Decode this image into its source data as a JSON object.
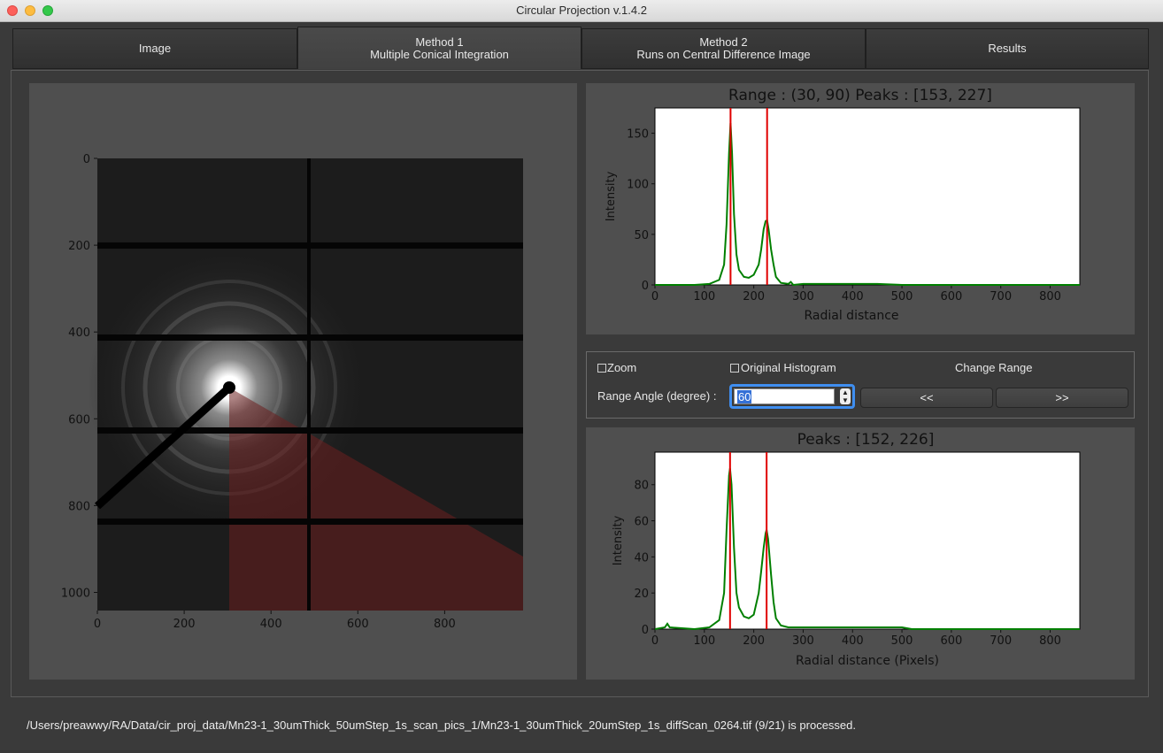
{
  "window": {
    "title": "Circular Projection v.1.4.2"
  },
  "tabs": [
    {
      "line1": "Image",
      "line2": ""
    },
    {
      "line1": "Method 1",
      "line2": "Multiple Conical Integration"
    },
    {
      "line1": "Method 2",
      "line2": "Runs on Central Difference Image"
    },
    {
      "line1": "Results",
      "line2": ""
    }
  ],
  "image_plot": {
    "x_ticks": [
      "0",
      "200",
      "400",
      "600",
      "800"
    ],
    "y_ticks": [
      "0",
      "200",
      "400",
      "600",
      "800",
      "1000"
    ]
  },
  "top_plot": {
    "title": "Range : (30, 90)   Peaks : [153, 227]",
    "ylabel": "Intensity",
    "xlabel": "Radial distance",
    "x_ticks": [
      "0",
      "100",
      "200",
      "300",
      "400",
      "500",
      "600",
      "700",
      "800"
    ],
    "y_ticks": [
      "0",
      "50",
      "100",
      "150"
    ]
  },
  "controls": {
    "zoom_label": "Zoom",
    "orig_hist_label": "Original Histogram",
    "change_range_label": "Change Range",
    "range_angle_label": "Range Angle (degree) :",
    "range_angle_value": "60",
    "prev_label": "<<",
    "next_label": ">>"
  },
  "bottom_plot": {
    "title": "Peaks : [152, 226]",
    "ylabel": "Intensity",
    "xlabel": "Radial distance (Pixels)",
    "x_ticks": [
      "0",
      "100",
      "200",
      "300",
      "400",
      "500",
      "600",
      "700",
      "800"
    ],
    "y_ticks": [
      "0",
      "20",
      "40",
      "60",
      "80"
    ]
  },
  "status": {
    "text": "/Users/preawwy/RA/Data/cir_proj_data/Mn23-1_30umThick_50umStep_1s_scan_pics_1/Mn23-1_30umThick_20umStep_1s_diffScan_0264.tif (9/21) is processed."
  },
  "chart_data": [
    {
      "type": "line",
      "title": "Range : (30, 90)   Peaks : [153, 227]",
      "xlabel": "Radial distance",
      "ylabel": "Intensity",
      "xlim": [
        0,
        860
      ],
      "ylim": [
        0,
        175
      ],
      "peaks": [
        153,
        227
      ],
      "series": [
        {
          "color": "#007f00",
          "x": [
            0,
            80,
            110,
            130,
            140,
            145,
            150,
            153,
            156,
            160,
            165,
            170,
            180,
            190,
            200,
            210,
            215,
            220,
            224,
            227,
            230,
            235,
            240,
            245,
            255,
            270,
            275,
            280,
            300,
            400,
            450,
            500,
            600,
            700,
            860
          ],
          "y": [
            0,
            0,
            1,
            5,
            20,
            60,
            130,
            160,
            130,
            70,
            30,
            15,
            8,
            7,
            10,
            20,
            35,
            55,
            63,
            64,
            55,
            35,
            20,
            8,
            2,
            1,
            3,
            0,
            1,
            1,
            1,
            0,
            0,
            0,
            0
          ]
        }
      ]
    },
    {
      "type": "line",
      "title": "Peaks : [152, 226]",
      "xlabel": "Radial distance (Pixels)",
      "ylabel": "Intensity",
      "xlim": [
        0,
        860
      ],
      "ylim": [
        0,
        98
      ],
      "peaks": [
        152,
        226
      ],
      "series": [
        {
          "color": "#007f00",
          "x": [
            0,
            20,
            25,
            30,
            80,
            110,
            130,
            140,
            145,
            150,
            152,
            155,
            160,
            165,
            170,
            180,
            190,
            200,
            210,
            215,
            220,
            224,
            226,
            229,
            235,
            240,
            245,
            255,
            270,
            300,
            400,
            500,
            520,
            600,
            700,
            860
          ],
          "y": [
            0,
            1,
            3,
            1,
            0,
            1,
            5,
            20,
            55,
            85,
            89,
            80,
            45,
            20,
            12,
            7,
            6,
            8,
            20,
            32,
            45,
            53,
            55,
            50,
            30,
            15,
            6,
            2,
            1,
            1,
            1,
            1,
            0,
            0,
            0,
            0
          ]
        }
      ]
    }
  ]
}
